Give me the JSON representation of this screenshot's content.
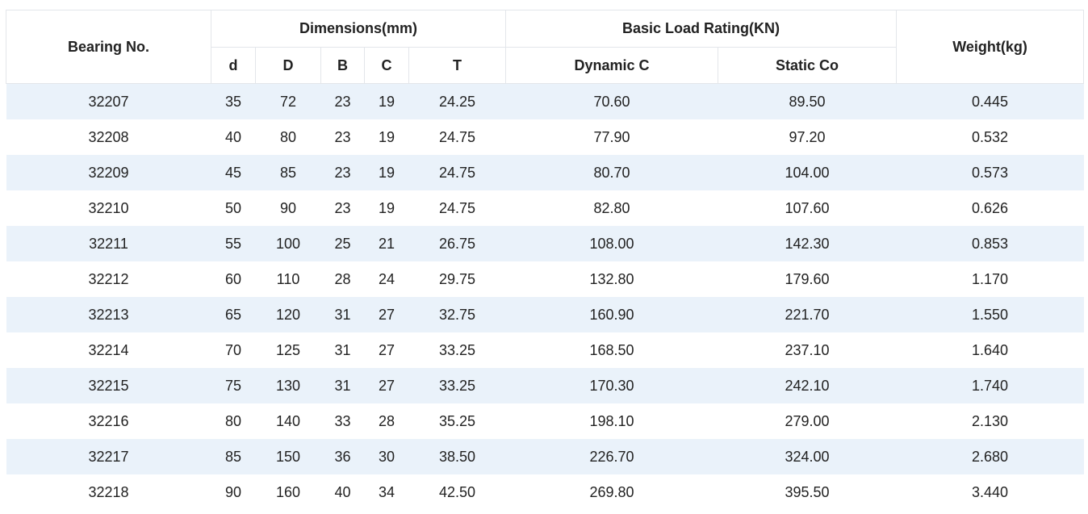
{
  "headers": {
    "bearing_no": "Bearing No.",
    "dimensions": "Dimensions(mm)",
    "basic_load_rating": "Basic Load Rating(KN)",
    "weight": "Weight(kg)",
    "d": "d",
    "D": "D",
    "B": "B",
    "C": "C",
    "T": "T",
    "dynamic_c": "Dynamic C",
    "static_co": "Static Co"
  },
  "rows": [
    {
      "bearing": "32207",
      "d": "35",
      "D": "72",
      "B": "23",
      "C": "19",
      "T": "24.25",
      "dynamic": "70.60",
      "static": "89.50",
      "weight": "0.445"
    },
    {
      "bearing": "32208",
      "d": "40",
      "D": "80",
      "B": "23",
      "C": "19",
      "T": "24.75",
      "dynamic": "77.90",
      "static": "97.20",
      "weight": "0.532"
    },
    {
      "bearing": "32209",
      "d": "45",
      "D": "85",
      "B": "23",
      "C": "19",
      "T": "24.75",
      "dynamic": "80.70",
      "static": "104.00",
      "weight": "0.573"
    },
    {
      "bearing": "32210",
      "d": "50",
      "D": "90",
      "B": "23",
      "C": "19",
      "T": "24.75",
      "dynamic": "82.80",
      "static": "107.60",
      "weight": "0.626"
    },
    {
      "bearing": "32211",
      "d": "55",
      "D": "100",
      "B": "25",
      "C": "21",
      "T": "26.75",
      "dynamic": "108.00",
      "static": "142.30",
      "weight": "0.853"
    },
    {
      "bearing": "32212",
      "d": "60",
      "D": "110",
      "B": "28",
      "C": "24",
      "T": "29.75",
      "dynamic": "132.80",
      "static": "179.60",
      "weight": "1.170"
    },
    {
      "bearing": "32213",
      "d": "65",
      "D": "120",
      "B": "31",
      "C": "27",
      "T": "32.75",
      "dynamic": "160.90",
      "static": "221.70",
      "weight": "1.550"
    },
    {
      "bearing": "32214",
      "d": "70",
      "D": "125",
      "B": "31",
      "C": "27",
      "T": "33.25",
      "dynamic": "168.50",
      "static": "237.10",
      "weight": "1.640"
    },
    {
      "bearing": "32215",
      "d": "75",
      "D": "130",
      "B": "31",
      "C": "27",
      "T": "33.25",
      "dynamic": "170.30",
      "static": "242.10",
      "weight": "1.740"
    },
    {
      "bearing": "32216",
      "d": "80",
      "D": "140",
      "B": "33",
      "C": "28",
      "T": "35.25",
      "dynamic": "198.10",
      "static": "279.00",
      "weight": "2.130"
    },
    {
      "bearing": "32217",
      "d": "85",
      "D": "150",
      "B": "36",
      "C": "30",
      "T": "38.50",
      "dynamic": "226.70",
      "static": "324.00",
      "weight": "2.680"
    },
    {
      "bearing": "32218",
      "d": "90",
      "D": "160",
      "B": "40",
      "C": "34",
      "T": "42.50",
      "dynamic": "269.80",
      "static": "395.50",
      "weight": "3.440"
    }
  ]
}
